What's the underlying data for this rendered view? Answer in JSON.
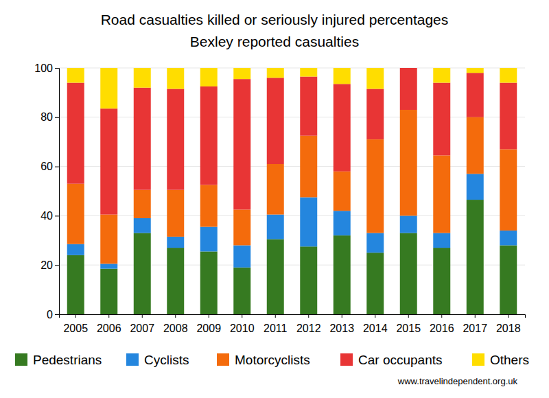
{
  "chart_data": {
    "type": "bar",
    "stacked": true,
    "grid": true,
    "legend": "bottom",
    "title": "Road casualties killed or seriously injured percentages",
    "subtitle": "Bexley reported casualties",
    "annotations": [
      "www.travelindependent.org.uk"
    ],
    "categories": [
      "2005",
      "2006",
      "2007",
      "2008",
      "2009",
      "2010",
      "2011",
      "2012",
      "2013",
      "2014",
      "2015",
      "2016",
      "2017",
      "2018"
    ],
    "ylim": [
      0,
      100
    ],
    "yticks": [
      0,
      20,
      40,
      60,
      80,
      100
    ],
    "series": [
      {
        "name": "Pedestrians",
        "color": "#367a21",
        "values": [
          24,
          18.5,
          33,
          27,
          25.5,
          19,
          30.5,
          27.5,
          32,
          25,
          33,
          27,
          46.5,
          28
        ]
      },
      {
        "name": "Cyclists",
        "color": "#2486de",
        "values": [
          4.5,
          2,
          6,
          4.5,
          10,
          9,
          10,
          20,
          10,
          8,
          7,
          6,
          10.5,
          6
        ]
      },
      {
        "name": "Motorcyclists",
        "color": "#f46b0c",
        "values": [
          24.5,
          20,
          11.5,
          19,
          17,
          14.5,
          20.5,
          25,
          16,
          38,
          43,
          31.5,
          23,
          33
        ]
      },
      {
        "name": "Car occupants",
        "color": "#e83535",
        "values": [
          41,
          43,
          41.5,
          41,
          40,
          53,
          35,
          24,
          35.5,
          20.5,
          17,
          29.5,
          18,
          27
        ]
      },
      {
        "name": "Others",
        "color": "#ffdd00",
        "values": [
          6,
          16.5,
          8,
          8.5,
          7.5,
          4.5,
          4,
          3.5,
          6.5,
          8.5,
          0,
          6,
          2,
          6
        ]
      }
    ]
  }
}
